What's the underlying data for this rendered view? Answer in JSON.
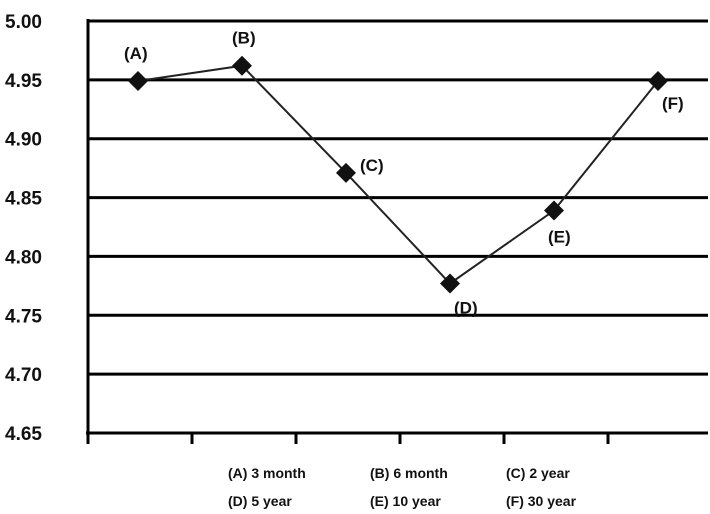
{
  "chart_data": {
    "type": "line",
    "ylim": [
      4.65,
      5.0
    ],
    "yticks": [
      "5.00",
      "4.95",
      "4.90",
      "4.85",
      "4.80",
      "4.75",
      "4.70",
      "4.65"
    ],
    "ytick_values": [
      5.0,
      4.95,
      4.9,
      4.85,
      4.8,
      4.75,
      4.7,
      4.65
    ],
    "grid": true,
    "points": [
      {
        "label": "(A)",
        "value": 4.949
      },
      {
        "label": "(B)",
        "value": 4.962
      },
      {
        "label": "(C)",
        "value": 4.871
      },
      {
        "label": "(D)",
        "value": 4.777
      },
      {
        "label": "(E)",
        "value": 4.839
      },
      {
        "label": "(F)",
        "value": 4.949
      }
    ],
    "legend_rows": [
      [
        "(A) 3 month",
        "(B) 6 month",
        "(C) 2 year"
      ],
      [
        "(D) 5 year",
        "(E) 10 year",
        "(F) 30 year"
      ]
    ],
    "colors": {
      "line": "#222222",
      "marker": "#111111",
      "grid": "#000000"
    }
  }
}
